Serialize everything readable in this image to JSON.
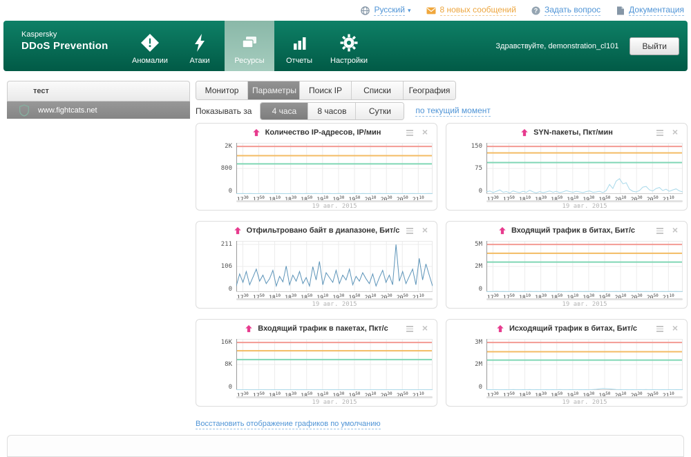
{
  "topbar": {
    "language": {
      "label": "Русский"
    },
    "messages": {
      "label": "8 новых сообщений"
    },
    "ask": {
      "label": "Задать вопрос"
    },
    "docs": {
      "label": "Документация"
    }
  },
  "header": {
    "brand_line1": "Kaspersky",
    "brand_line2": "DDoS Prevention",
    "nav": [
      {
        "label": "Аномалии"
      },
      {
        "label": "Атаки"
      },
      {
        "label": "Ресурсы"
      },
      {
        "label": "Отчеты"
      },
      {
        "label": "Настройки"
      }
    ],
    "active_nav": "Ресурсы",
    "greeting": "Здравствуйте, demonstration_cl101",
    "logout_label": "Выйти"
  },
  "sidebar": {
    "group_title": "тест",
    "items": [
      {
        "label": "www.fightcats.net",
        "selected": true
      }
    ]
  },
  "tabs": {
    "items": [
      {
        "label": "Монитор"
      },
      {
        "label": "Параметры"
      },
      {
        "label": "Поиск IP"
      },
      {
        "label": "Списки"
      },
      {
        "label": "География"
      }
    ],
    "active": "Параметры"
  },
  "period": {
    "label": "Показывать за",
    "options": [
      {
        "label": "4 часа"
      },
      {
        "label": "8 часов"
      },
      {
        "label": "Сутки"
      }
    ],
    "active": "4 часа",
    "now_link": "по текущий момент"
  },
  "footer": {
    "restore_link": "Восстановить отображение графиков по умолчанию"
  },
  "colors": {
    "header_green": "#0e8066",
    "header_green_dark": "#015a46",
    "nav_active_green": "#8fbcac",
    "accent_pink": "#e73b8e",
    "link_blue": "#4f94d6",
    "message_orange": "#eda63f",
    "red": "#f39a93",
    "orange": "#f3bb63",
    "green": "#7fd6b4",
    "light_blue": "#a9d9ea",
    "steel_blue": "#5b93b8"
  },
  "chart_data": {
    "type": "line",
    "x_axis": {
      "tick_labels": [
        "17:30",
        "17:50",
        "18:10",
        "18:30",
        "18:50",
        "19:10",
        "19:30",
        "19:50",
        "20:10",
        "20:30",
        "20:50",
        "21:10"
      ],
      "date_label": "19 авг. 2015",
      "window": "4 часа"
    },
    "charts": [
      {
        "title": "Количество IP-адресов, IP/мин",
        "y_ticks": [
          {
            "label": "2K",
            "value": 2000
          },
          {
            "label": "800",
            "value": 800
          },
          {
            "label": "0",
            "value": 0
          }
        ],
        "thresholds": [
          {
            "color_key": "red",
            "value": 2000
          },
          {
            "color_key": "orange",
            "value": 1500
          },
          {
            "color_key": "green",
            "value": 1050
          }
        ],
        "series": {
          "color_key": "light_blue",
          "values": [
            14,
            12,
            16,
            11,
            15,
            13,
            10,
            14,
            12,
            17,
            13,
            11,
            15,
            12,
            14,
            10,
            13,
            16,
            12,
            14,
            11,
            15,
            13,
            12,
            16,
            11,
            14,
            12,
            15,
            10,
            13,
            15,
            11,
            14,
            12,
            16,
            13,
            11,
            15,
            12,
            14,
            10,
            13,
            16,
            12,
            14,
            11,
            15,
            13,
            12,
            14,
            11,
            13,
            15,
            12,
            14,
            10,
            13,
            15,
            12
          ]
        }
      },
      {
        "title": "SYN-пакеты, Пкт/мин",
        "y_ticks": [
          {
            "label": "150",
            "value": 150
          },
          {
            "label": "75",
            "value": 75
          },
          {
            "label": "0",
            "value": 0
          }
        ],
        "thresholds": [
          {
            "color_key": "red",
            "value": 150
          },
          {
            "color_key": "orange",
            "value": 128
          },
          {
            "color_key": "green",
            "value": 95
          }
        ],
        "series": {
          "color_key": "light_blue",
          "values": [
            6,
            9,
            4,
            8,
            12,
            5,
            7,
            3,
            9,
            6,
            4,
            8,
            5,
            11,
            6,
            3,
            7,
            4,
            6,
            9,
            5,
            8,
            4,
            6,
            10,
            7,
            5,
            8,
            6,
            4,
            7,
            9,
            5,
            6,
            8,
            4,
            10,
            28,
            16,
            38,
            45,
            30,
            33,
            14,
            8,
            6,
            10,
            20,
            22,
            12,
            9,
            16,
            19,
            10,
            14,
            8,
            12,
            15,
            9,
            6
          ]
        }
      },
      {
        "title": "Отфильтровано байт в диапазоне, Бит/с",
        "y_ticks": [
          {
            "label": "211",
            "value": 211
          },
          {
            "label": "106",
            "value": 106
          },
          {
            "label": "0",
            "value": 0
          }
        ],
        "thresholds": [],
        "series": {
          "color_key": "steel_blue",
          "values": [
            25,
            75,
            40,
            85,
            30,
            62,
            95,
            45,
            70,
            35,
            55,
            90,
            25,
            65,
            42,
            108,
            30,
            70,
            45,
            85,
            35,
            60,
            25,
            105,
            50,
            130,
            30,
            80,
            60,
            40,
            90,
            35,
            70,
            50,
            95,
            30,
            65,
            45,
            80,
            55,
            35,
            75,
            25,
            60,
            90,
            40,
            70,
            30,
            211,
            45,
            85,
            35,
            65,
            95,
            30,
            145,
            50,
            118,
            70,
            25
          ]
        }
      },
      {
        "title": "Входящий трафик в битах, Бит/с",
        "y_ticks": [
          {
            "label": "5M",
            "value": 5000000
          },
          {
            "label": "2M",
            "value": 2000000
          },
          {
            "label": "0",
            "value": 0
          }
        ],
        "thresholds": [
          {
            "color_key": "red",
            "value": 5000000
          },
          {
            "color_key": "orange",
            "value": 3800000
          },
          {
            "color_key": "green",
            "value": 2600000
          }
        ],
        "series": {
          "color_key": "light_blue",
          "values": [
            38000,
            45000,
            40000,
            52000,
            36000,
            48000,
            42000,
            39000,
            50000,
            44000,
            37000,
            46000,
            41000,
            53000,
            38000,
            47000,
            43000,
            36000,
            49000,
            40000,
            45000,
            38000,
            51000,
            42000,
            39000,
            47000,
            44000,
            37000,
            50000,
            41000,
            46000,
            39000,
            52000,
            43000,
            38000,
            48000,
            40000,
            45000,
            37000,
            51000,
            42000,
            46000,
            39000,
            49000,
            43000,
            37000,
            47000,
            41000,
            50000,
            38000,
            45000,
            42000,
            36000,
            48000,
            40000,
            46000,
            39000,
            51000,
            43000,
            38000
          ]
        }
      },
      {
        "title": "Входящий трафик в пакетах, Пкт/с",
        "y_ticks": [
          {
            "label": "16K",
            "value": 16000
          },
          {
            "label": "8K",
            "value": 8000
          },
          {
            "label": "0",
            "value": 0
          }
        ],
        "thresholds": [
          {
            "color_key": "red",
            "value": 16000
          },
          {
            "color_key": "orange",
            "value": 13000
          },
          {
            "color_key": "green",
            "value": 9800
          }
        ],
        "series": {
          "color_key": "light_blue",
          "values": [
            90,
            110,
            80,
            120,
            95,
            75,
            105,
            85,
            115,
            90,
            70,
            100,
            88,
            118,
            78,
            108,
            92,
            72,
            112,
            82,
            102,
            96,
            76,
            116,
            86,
            106,
            90,
            70,
            110,
            84,
            104,
            94,
            74,
            114,
            88,
            98,
            80,
            108,
            92,
            118,
            76,
            106,
            86,
            96,
            110,
            78,
            102,
            90,
            116,
            82,
            100,
            88,
            72,
            112,
            94,
            104,
            80,
            108,
            86,
            98
          ]
        }
      },
      {
        "title": "Исходящий трафик в битах, Бит/с",
        "y_ticks": [
          {
            "label": "3M",
            "value": 3000000
          },
          {
            "label": "2M",
            "value": 2000000
          },
          {
            "label": "0",
            "value": 0
          }
        ],
        "thresholds": [
          {
            "color_key": "red",
            "value": 3000000
          },
          {
            "color_key": "orange",
            "value": 2580000
          },
          {
            "color_key": "green",
            "value": 2200000
          }
        ],
        "series": {
          "color_key": "light_blue",
          "values": [
            22000,
            30000,
            25000,
            35000,
            20000,
            28000,
            32000,
            24000,
            36000,
            26000,
            21000,
            33000,
            27000,
            38000,
            23000,
            31000,
            29000,
            20000,
            34000,
            25000,
            30000,
            22000,
            36000,
            28000,
            24000,
            32000,
            26000,
            21000,
            35000,
            27000,
            31000,
            23000,
            40000,
            60000,
            90000,
            120000,
            110000,
            95000,
            70000,
            45000,
            35000,
            28000,
            33000,
            25000,
            30000,
            22000,
            34000,
            27000,
            36000,
            24000,
            31000,
            26000,
            21000,
            33000,
            28000,
            30000,
            23000,
            35000,
            27000,
            24000
          ]
        }
      }
    ]
  }
}
